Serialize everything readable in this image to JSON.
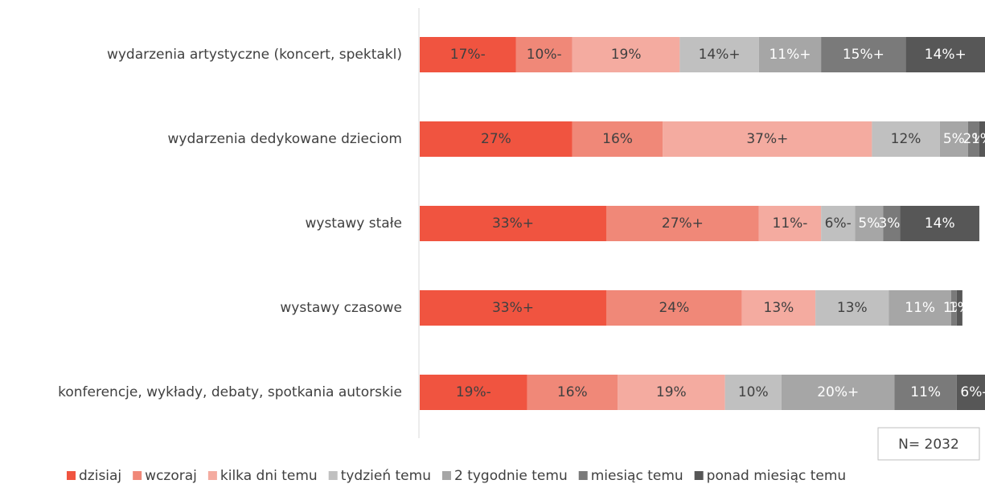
{
  "chart_data": {
    "type": "stacked_barh",
    "categories": [
      "wydarzenia artystyczne (koncert, spektakl)",
      "wydarzenia dedykowane dzieciom",
      "wystawy stałe",
      "wystawy czasowe",
      "konferencje, wykłady, debaty, spotkania autorskie"
    ],
    "xlim": [
      0,
      100
    ],
    "annotation": "N= 2032",
    "legend": "bottom",
    "series": [
      {
        "name": "dzisiaj",
        "color": "#f05440",
        "values": [
          17,
          27,
          33,
          33,
          19
        ],
        "value_labels": [
          "17%-",
          "27%",
          "33%+",
          "33%+",
          "19%-"
        ]
      },
      {
        "name": "wczoraj",
        "color": "#f08878",
        "values": [
          10,
          16,
          27,
          24,
          16
        ],
        "value_labels": [
          "10%-",
          "16%",
          "27%+",
          "24%",
          "16%"
        ]
      },
      {
        "name": "kilka dni temu",
        "color": "#f4aba0",
        "values": [
          19,
          37,
          11,
          13,
          19
        ],
        "value_labels": [
          "19%",
          "37%+",
          "11%-",
          "13%",
          "19%"
        ]
      },
      {
        "name": "tydzień temu",
        "color": "#c0c0c0",
        "values": [
          14,
          12,
          6,
          13,
          10
        ],
        "value_labels": [
          "14%+",
          "12%",
          "6%-",
          "13%",
          "10%"
        ]
      },
      {
        "name": "2 tygodnie temu",
        "color": "#a6a6a6",
        "values": [
          11,
          5,
          5,
          11,
          20
        ],
        "value_labels": [
          "11%+",
          "5%",
          "5%",
          "11%",
          "20%+"
        ]
      },
      {
        "name": "miesiąc temu",
        "color": "#7a7a7a",
        "values": [
          15,
          2,
          3,
          1,
          11
        ],
        "value_labels": [
          "15%+",
          "2%",
          "3%-",
          "1%",
          "11%"
        ]
      },
      {
        "name": "ponad miesiąc temu",
        "color": "#575757",
        "values": [
          14,
          1,
          14,
          1,
          6
        ],
        "value_labels": [
          "14%+",
          "1%",
          "14%",
          "1%",
          "6%-"
        ]
      }
    ]
  }
}
